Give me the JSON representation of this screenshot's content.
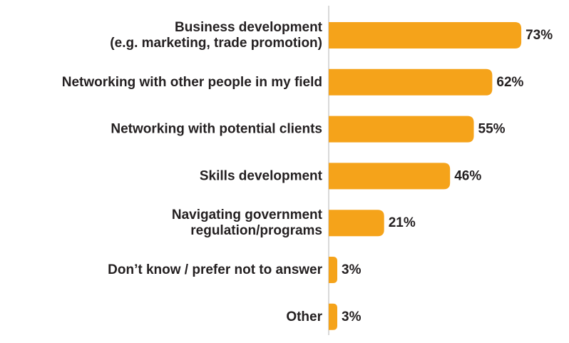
{
  "chart_data": {
    "type": "bar",
    "orientation": "horizontal",
    "categories": [
      [
        "Business development",
        "(e.g. marketing, trade promotion)"
      ],
      [
        "Networking with other people in my field"
      ],
      [
        "Networking with potential clients"
      ],
      [
        "Skills development"
      ],
      [
        "Navigating government",
        "regulation/programs"
      ],
      [
        "Don’t know / prefer not to answer"
      ],
      [
        "Other"
      ]
    ],
    "values": [
      73,
      62,
      55,
      46,
      21,
      3,
      3
    ],
    "value_labels": [
      "73%",
      "62%",
      "55%",
      "46%",
      "21%",
      "3%",
      "3%"
    ],
    "unit": "%",
    "xlim": [
      0,
      100
    ],
    "bar_color": "#f5a31a",
    "axis_color": "#d9d9d9",
    "grid": false,
    "legend": "none"
  }
}
